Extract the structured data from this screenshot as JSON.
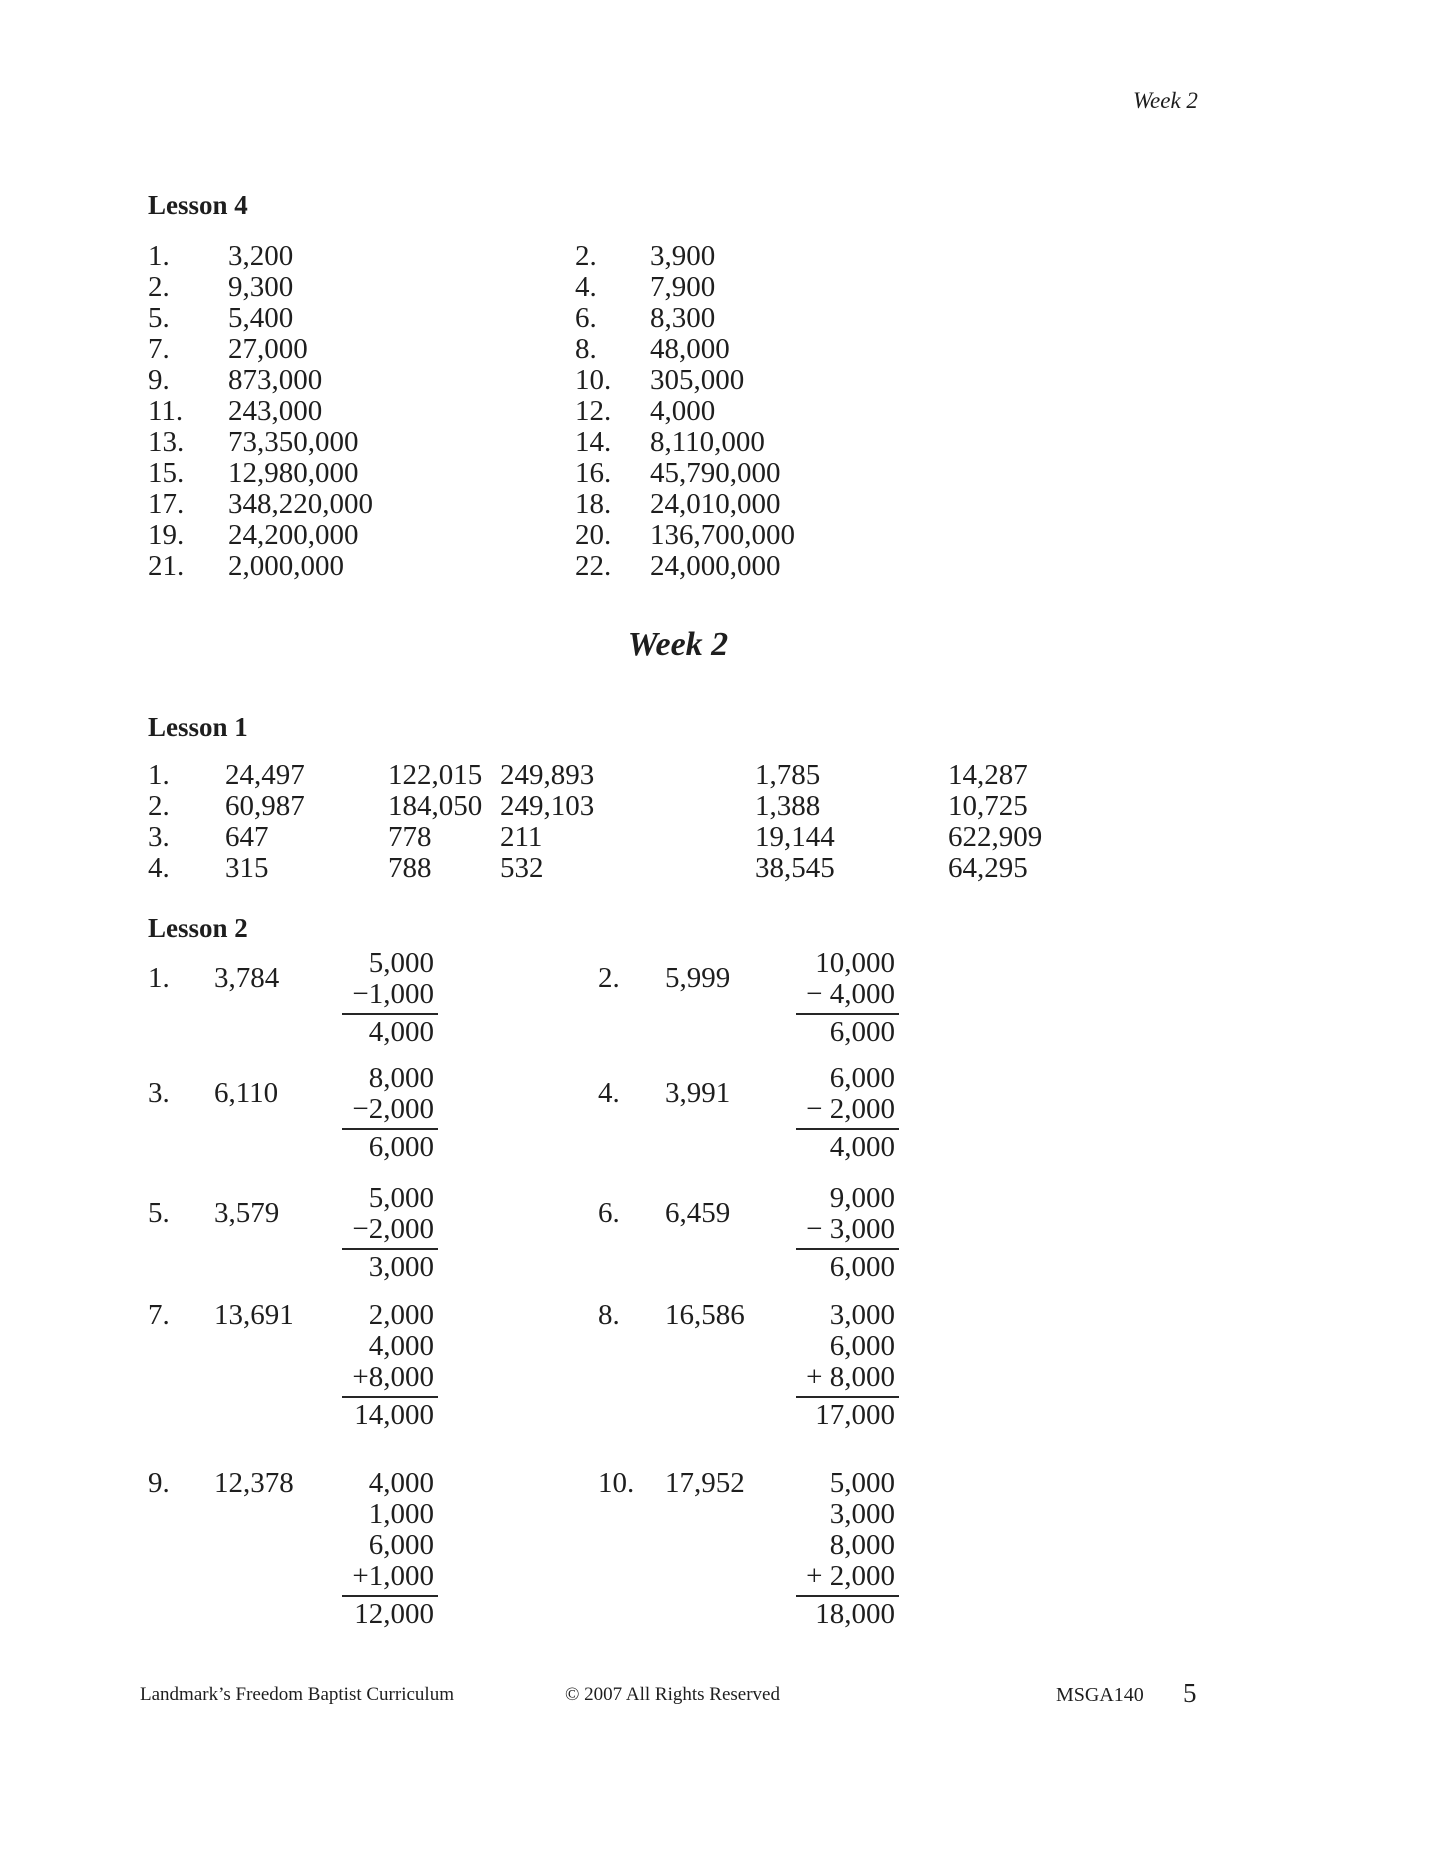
{
  "page": {
    "running_head": "Week 2",
    "week_heading": "Week 2",
    "text_color": "#1e1e1e",
    "background_color": "#ffffff"
  },
  "lesson4": {
    "title": "Lesson 4",
    "rows": [
      {
        "ln": "1.",
        "lv": "3,200",
        "rn": "2.",
        "rv": "3,900"
      },
      {
        "ln": "2.",
        "lv": "9,300",
        "rn": "4.",
        "rv": "7,900"
      },
      {
        "ln": "5.",
        "lv": "5,400",
        "rn": "6.",
        "rv": "8,300"
      },
      {
        "ln": "7.",
        "lv": "27,000",
        "rn": "8.",
        "rv": "48,000"
      },
      {
        "ln": "9.",
        "lv": "873,000",
        "rn": "10.",
        "rv": "305,000"
      },
      {
        "ln": "11.",
        "lv": "243,000",
        "rn": "12.",
        "rv": "4,000"
      },
      {
        "ln": "13.",
        "lv": "73,350,000",
        "rn": "14.",
        "rv": "8,110,000"
      },
      {
        "ln": "15.",
        "lv": "12,980,000",
        "rn": "16.",
        "rv": "45,790,000"
      },
      {
        "ln": "17.",
        "lv": "348,220,000",
        "rn": "18.",
        "rv": "24,010,000"
      },
      {
        "ln": "19.",
        "lv": "24,200,000",
        "rn": "20.",
        "rv": "136,700,000"
      },
      {
        "ln": "21.",
        "lv": "2,000,000",
        "rn": "22.",
        "rv": "24,000,000"
      }
    ]
  },
  "lesson1": {
    "title": "Lesson 1",
    "rows": [
      {
        "n": "1.",
        "c1": "24,497",
        "c2": "122,015",
        "c3": "249,893",
        "c4": "1,785",
        "c5": "14,287"
      },
      {
        "n": "2.",
        "c1": "60,987",
        "c2": "184,050",
        "c3": "249,103",
        "c4": "1,388",
        "c5": "10,725"
      },
      {
        "n": "3.",
        "c1": "647",
        "c2": "778",
        "c3": "211",
        "c4": "19,144",
        "c5": "622,909"
      },
      {
        "n": "4.",
        "c1": "315",
        "c2": "788",
        "c3": "532",
        "c4": "38,545",
        "c5": "64,295"
      }
    ]
  },
  "lesson2": {
    "title": "Lesson 2",
    "problems": [
      {
        "n": "1.",
        "value": "3,784",
        "stack": [
          "5,000",
          "−1,000"
        ],
        "result": "4,000"
      },
      {
        "n": "2.",
        "value": "5,999",
        "stack": [
          "10,000",
          "− 4,000"
        ],
        "result": "6,000"
      },
      {
        "n": "3.",
        "value": "6,110",
        "stack": [
          "8,000",
          "−2,000"
        ],
        "result": "6,000"
      },
      {
        "n": "4.",
        "value": "3,991",
        "stack": [
          "6,000",
          "− 2,000"
        ],
        "result": "4,000"
      },
      {
        "n": "5.",
        "value": "3,579",
        "stack": [
          "5,000",
          "−2,000"
        ],
        "result": "3,000"
      },
      {
        "n": "6.",
        "value": "6,459",
        "stack": [
          "9,000",
          "− 3,000"
        ],
        "result": "6,000"
      },
      {
        "n": "7.",
        "value": "13,691",
        "stack": [
          "2,000",
          "4,000",
          "+8,000"
        ],
        "result": "14,000"
      },
      {
        "n": "8.",
        "value": "16,586",
        "stack": [
          "3,000",
          "6,000",
          "+ 8,000"
        ],
        "result": "17,000"
      },
      {
        "n": "9.",
        "value": "12,378",
        "stack": [
          "4,000",
          "1,000",
          "6,000",
          "+1,000"
        ],
        "result": "12,000"
      },
      {
        "n": "10.",
        "value": "17,952",
        "stack": [
          "5,000",
          "3,000",
          "8,000",
          "+ 2,000"
        ],
        "result": "18,000"
      }
    ]
  },
  "footer": {
    "left": "Landmark’s Freedom Baptist Curriculum",
    "center": "© 2007 All Rights Reserved",
    "code": "MSGA140",
    "page_number": "5"
  }
}
